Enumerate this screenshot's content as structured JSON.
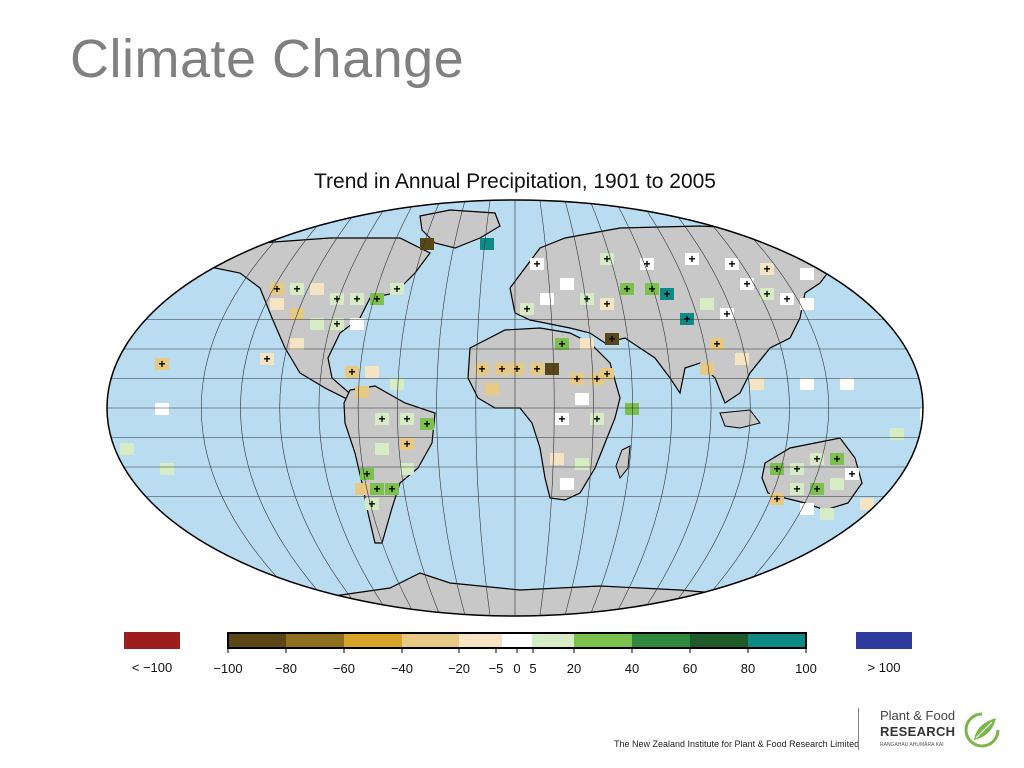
{
  "slide": {
    "title": "Climate Change",
    "footer": "The New Zealand Institute for Plant & Food Research Limited"
  },
  "logo": {
    "line1": "Plant & Food",
    "line2": "RESEARCH",
    "line3": "RANGAHAU AHUMĀRA KAI",
    "icon": "leaf-circle-icon"
  },
  "figure": {
    "title": "Trend in Annual Precipitation, 1901 to 2005",
    "ocean_color": "#b9dcf1",
    "land_color": "#c8c8c8"
  },
  "legend": {
    "low_label": "< −100",
    "high_label": "> 100",
    "low_color": "#9c1d1d",
    "high_color": "#2e3b9c",
    "colors": [
      "#5b4716",
      "#8e6f20",
      "#d6a42a",
      "#e8c984",
      "#f5e4c4",
      "#ffffff",
      "#d6ecc4",
      "#7cc04e",
      "#2f8a3e",
      "#1e5a2a",
      "#0d8a86"
    ],
    "ticks": [
      "−100",
      "−80",
      "−60",
      "−40",
      "−20",
      "−5",
      "0",
      "5",
      "20",
      "40",
      "60",
      "80",
      "100"
    ]
  }
}
